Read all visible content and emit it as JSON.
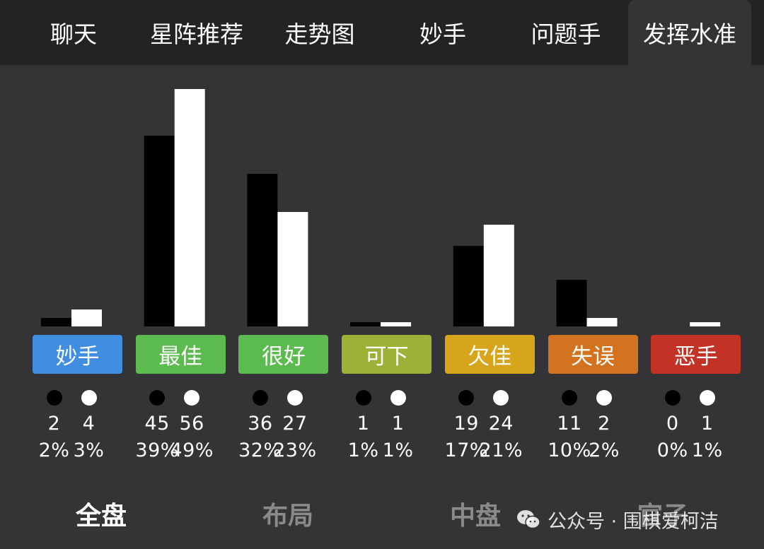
{
  "tabs": [
    {
      "label": "聊天"
    },
    {
      "label": "星阵推荐"
    },
    {
      "label": "走势图"
    },
    {
      "label": "妙手"
    },
    {
      "label": "问题手"
    },
    {
      "label": "发挥水准"
    }
  ],
  "active_tab": 5,
  "categories": [
    {
      "label": "妙手",
      "color": "#3f8edf"
    },
    {
      "label": "最佳",
      "color": "#5bbb4f"
    },
    {
      "label": "很好",
      "color": "#5bbb4f"
    },
    {
      "label": "可下",
      "color": "#9bb236"
    },
    {
      "label": "欠佳",
      "color": "#d7a51c"
    },
    {
      "label": "失误",
      "color": "#d3731f"
    },
    {
      "label": "恶手",
      "color": "#c23325"
    }
  ],
  "chart_data": {
    "type": "bar",
    "categories": [
      "妙手",
      "最佳",
      "很好",
      "可下",
      "欠佳",
      "失误",
      "恶手"
    ],
    "series": [
      {
        "color": "#000000",
        "values": [
          2,
          45,
          36,
          1,
          19,
          11,
          0
        ],
        "percents": [
          "2%",
          "39%",
          "32%",
          "1%",
          "17%",
          "10%",
          "0%"
        ]
      },
      {
        "color": "#ffffff",
        "values": [
          4,
          56,
          27,
          1,
          24,
          2,
          1
        ],
        "percents": [
          "3%",
          "49%",
          "23%",
          "1%",
          "21%",
          "2%",
          "1%"
        ]
      }
    ],
    "ylim": [
      0,
      56
    ]
  },
  "phases": [
    {
      "label": "全盘",
      "color": "#ffffff"
    },
    {
      "label": "布局",
      "color": "#8a8a8c"
    },
    {
      "label": "中盘",
      "color": "#8a8a8c"
    },
    {
      "label": "官子",
      "color": "#8a8a8c"
    }
  ],
  "watermark": {
    "text": "公众号 · 围棋爱柯洁"
  }
}
